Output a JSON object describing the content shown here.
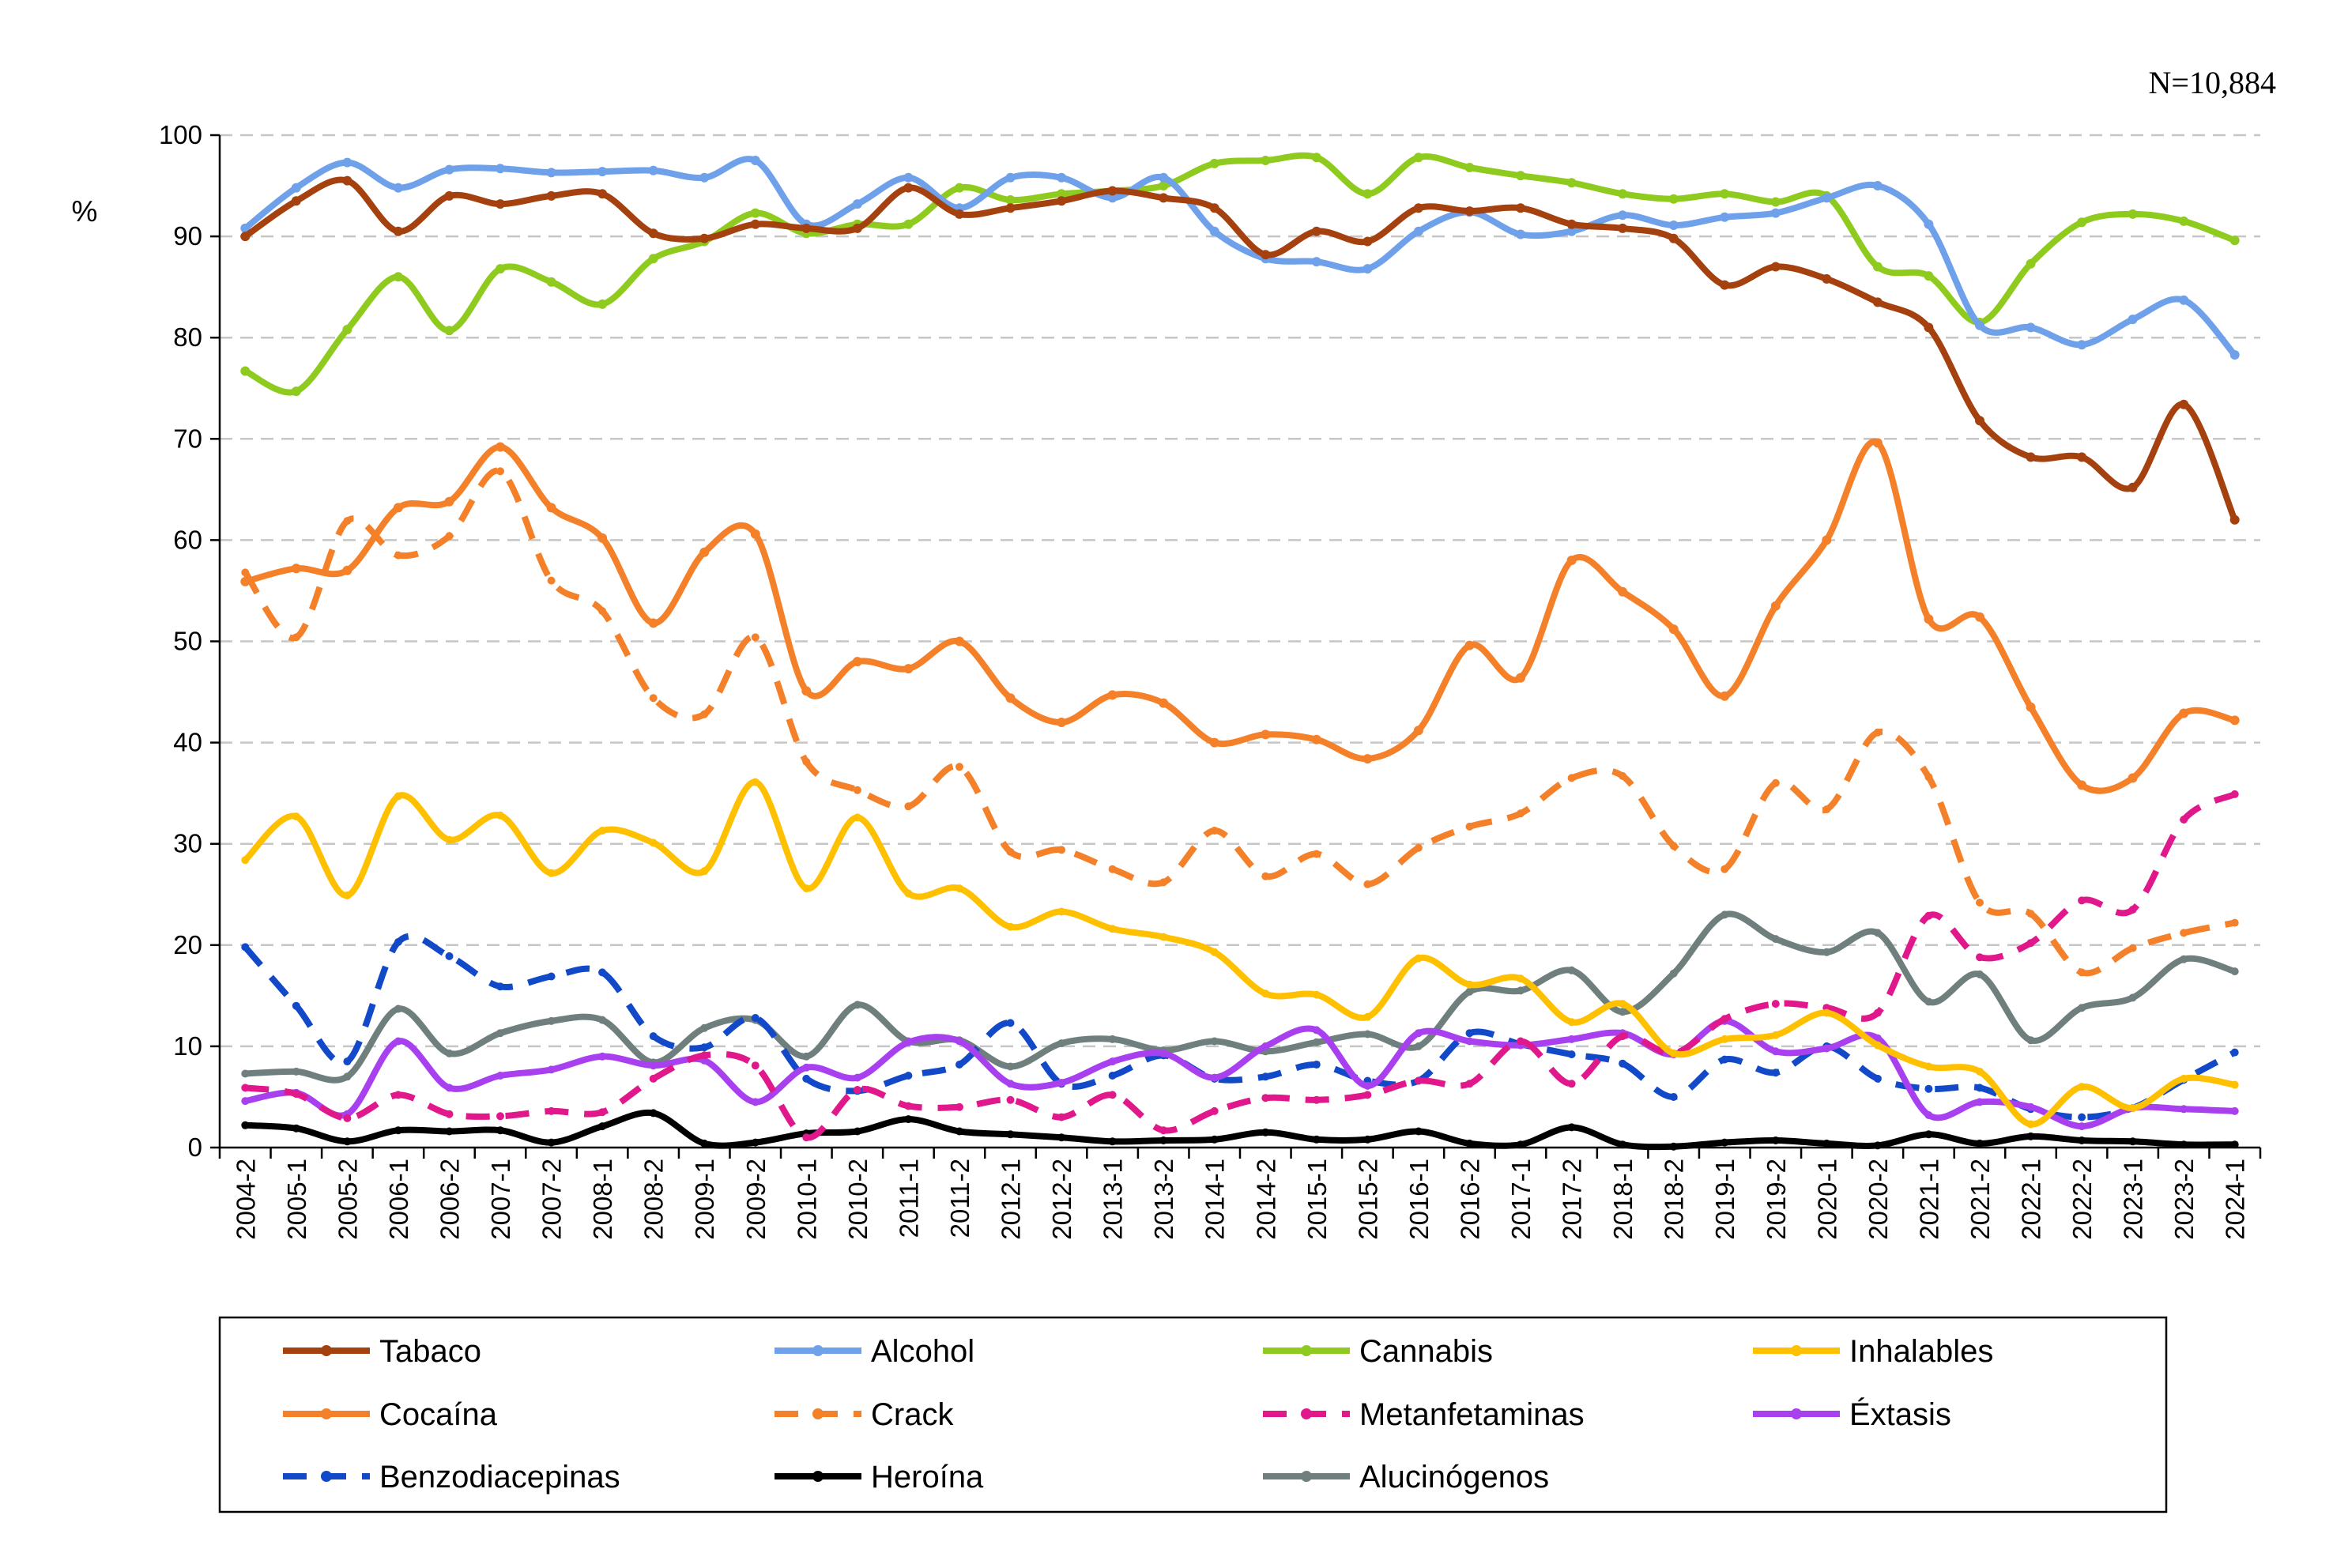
{
  "chart_data": {
    "type": "line",
    "title": "",
    "annotation": "N=10,884",
    "xlabel": "",
    "ylabel": "%",
    "ylim": [
      0,
      100
    ],
    "yticks": [
      0,
      10,
      20,
      30,
      40,
      50,
      60,
      70,
      80,
      90,
      100
    ],
    "grid": "horizontal dashed",
    "legend": "bottom",
    "categories": [
      "2004-2",
      "2005-1",
      "2005-2",
      "2006-1",
      "2006-2",
      "2007-1",
      "2007-2",
      "2008-1",
      "2008-2",
      "2009-1",
      "2009-2",
      "2010-1",
      "2010-2",
      "2011-1",
      "2011-2",
      "2012-1",
      "2012-2",
      "2013-1",
      "2013-2",
      "2014-1",
      "2014-2",
      "2015-1",
      "2015-2",
      "2016-1",
      "2016-2",
      "2017-1",
      "2017-2",
      "2018-1",
      "2018-2",
      "2019-1",
      "2019-2",
      "2020-1",
      "2020-2",
      "2021-1",
      "2021-2",
      "2022-1",
      "2022-2",
      "2023-1",
      "2023-2",
      "2024-1"
    ],
    "series": [
      {
        "name": "Tabaco",
        "color": "#a5410f",
        "dash": "solid",
        "values": [
          90,
          93.5,
          95.5,
          90.5,
          94,
          93.2,
          94,
          94.2,
          90.3,
          89.8,
          91.2,
          90.8,
          90.8,
          94.8,
          92.2,
          92.8,
          93.5,
          94.5,
          93.8,
          92.8,
          88.2,
          90.5,
          89.5,
          92.8,
          92.5,
          92.8,
          91.2,
          90.8,
          89.8,
          85.2,
          87,
          85.8,
          83.5,
          81,
          71.8,
          68.2,
          68.2,
          65.2,
          73.4,
          62
        ]
      },
      {
        "name": "Alcohol",
        "color": "#6fa0ea",
        "dash": "solid",
        "values": [
          90.8,
          94.8,
          97.3,
          94.8,
          96.6,
          96.7,
          96.3,
          96.4,
          96.5,
          95.8,
          97.5,
          91.2,
          93.2,
          95.8,
          92.8,
          95.8,
          95.8,
          93.8,
          95.8,
          90.5,
          87.8,
          87.5,
          86.8,
          90.5,
          92.4,
          90.2,
          90.5,
          92.1,
          91.1,
          91.9,
          92.3,
          93.8,
          95,
          91.2,
          81.2,
          81,
          79.3,
          81.8,
          83.7,
          78.3
        ]
      },
      {
        "name": "Cannabis",
        "color": "#8fcb1f",
        "dash": "solid",
        "values": [
          76.7,
          74.7,
          80.8,
          86,
          80.7,
          86.8,
          85.5,
          83.3,
          87.8,
          89.5,
          92.3,
          90.3,
          91.2,
          91.2,
          94.8,
          93.6,
          94.2,
          94.5,
          95,
          97.2,
          97.5,
          97.8,
          94.2,
          97.8,
          96.8,
          96,
          95.3,
          94.2,
          93.7,
          94.2,
          93.4,
          94,
          87,
          86.1,
          81.5,
          87.3,
          91.4,
          92.2,
          91.5,
          89.6
        ]
      },
      {
        "name": "Inhalables",
        "color": "#ffc000",
        "dash": "solid",
        "values": [
          28.4,
          32.7,
          24.9,
          34.7,
          30.4,
          32.8,
          27.1,
          31.3,
          30.1,
          27.3,
          36.1,
          25.6,
          32.6,
          25.1,
          25.6,
          21.8,
          23.3,
          21.6,
          20.8,
          19.3,
          15.2,
          15.1,
          12.9,
          18.7,
          16.1,
          16.7,
          12.4,
          14.2,
          9.3,
          10.7,
          11.1,
          13.3,
          10.1,
          8,
          7.5,
          2.3,
          6,
          3.9,
          6.8,
          6.2
        ]
      },
      {
        "name": "Cocaína",
        "color": "#f4812a",
        "dash": "solid",
        "values": [
          55.9,
          57.2,
          57,
          63.2,
          63.8,
          69.2,
          63.2,
          60.2,
          51.8,
          58.8,
          60.6,
          45.1,
          48,
          47.3,
          50,
          44.4,
          42,
          44.7,
          43.9,
          40,
          40.8,
          40.3,
          38.4,
          41.2,
          49.6,
          46.4,
          58,
          54.9,
          51.2,
          44.6,
          53.5,
          60,
          69.6,
          52.2,
          52.4,
          43.5,
          35.8,
          36.5,
          42.9,
          42.2
        ]
      },
      {
        "name": "Crack",
        "color": "#f4812a",
        "dash": "dashed",
        "values": [
          56.8,
          50.4,
          61.9,
          58.5,
          60.4,
          66.8,
          56,
          53,
          44.4,
          42.8,
          50.4,
          38.1,
          35.3,
          33.7,
          37.6,
          29.2,
          29.4,
          27.5,
          26.2,
          31.3,
          26.8,
          29,
          26,
          29.6,
          31.7,
          33,
          36.5,
          36.7,
          29.8,
          27.5,
          36,
          33.4,
          41,
          36.6,
          24.2,
          23.1,
          17.3,
          19.7,
          21.2,
          22.2
        ]
      },
      {
        "name": "Metanfetaminas",
        "color": "#e0188b",
        "dash": "dashed",
        "values": [
          5.9,
          5.3,
          2.9,
          5.2,
          3.3,
          3.1,
          3.6,
          3.5,
          6.8,
          9.1,
          8.1,
          1,
          5.7,
          4.1,
          4,
          4.7,
          3,
          5.2,
          1.7,
          3.6,
          4.9,
          4.7,
          5.2,
          6.6,
          6.3,
          10.5,
          6.3,
          11,
          9.3,
          12.7,
          14.2,
          13.8,
          13.3,
          22.9,
          18.8,
          20.2,
          24.4,
          23.5,
          32.4,
          34.9
        ]
      },
      {
        "name": "Éxtasis",
        "color": "#a940f0",
        "dash": "solid",
        "values": [
          4.6,
          5.4,
          3.3,
          10.5,
          5.9,
          7.1,
          7.7,
          9,
          8.1,
          8.6,
          4.5,
          7.9,
          6.9,
          10.4,
          10.5,
          6.3,
          6.4,
          8.5,
          9.3,
          6.9,
          10,
          11.6,
          6.1,
          11.3,
          10.5,
          10.1,
          10.7,
          11.3,
          9.2,
          12.5,
          9.5,
          9.8,
          10.8,
          3.2,
          4.5,
          4,
          2.1,
          3.9,
          3.8,
          3.6
        ]
      },
      {
        "name": "Benzodiacepinas",
        "color": "#1149c8",
        "dash": "dashed",
        "values": [
          19.8,
          14,
          8.5,
          20.3,
          18.9,
          15.9,
          16.9,
          17.3,
          11,
          9.9,
          12.8,
          6.8,
          5.6,
          7.1,
          8.2,
          12.3,
          6.3,
          7.1,
          9.1,
          6.8,
          7,
          8.2,
          6.6,
          6.6,
          11.3,
          10.2,
          9.2,
          8.3,
          5,
          8.7,
          7.4,
          10,
          6.8,
          5.8,
          5.9,
          3.8,
          3,
          3.9,
          6.7,
          9.4
        ]
      },
      {
        "name": "Heroína",
        "color": "#000000",
        "dash": "solid",
        "values": [
          2.2,
          1.9,
          0.6,
          1.7,
          1.6,
          1.7,
          0.5,
          2.1,
          3.4,
          0.4,
          0.5,
          1.4,
          1.6,
          2.8,
          1.6,
          1.3,
          1,
          0.6,
          0.7,
          0.8,
          1.5,
          0.8,
          0.8,
          1.6,
          0.4,
          0.3,
          2,
          0.3,
          0.1,
          0.5,
          0.7,
          0.4,
          0.2,
          1.3,
          0.4,
          1.1,
          0.7,
          0.6,
          0.3,
          0.3
        ]
      },
      {
        "name": "Alucinógenos",
        "color": "#6f7f7d",
        "dash": "solid",
        "values": [
          7.3,
          7.5,
          7,
          13.7,
          9.3,
          11.3,
          12.5,
          12.6,
          8.4,
          11.8,
          12.6,
          9,
          14.1,
          10.5,
          10.6,
          8,
          10.3,
          10.7,
          9.6,
          10.5,
          9.5,
          10.4,
          11.2,
          10,
          15.4,
          15.5,
          17.5,
          13.4,
          17.2,
          23,
          20.6,
          19.3,
          21.2,
          14.4,
          17.1,
          10.6,
          13.8,
          14.8,
          18.6,
          17.4
        ]
      }
    ]
  }
}
